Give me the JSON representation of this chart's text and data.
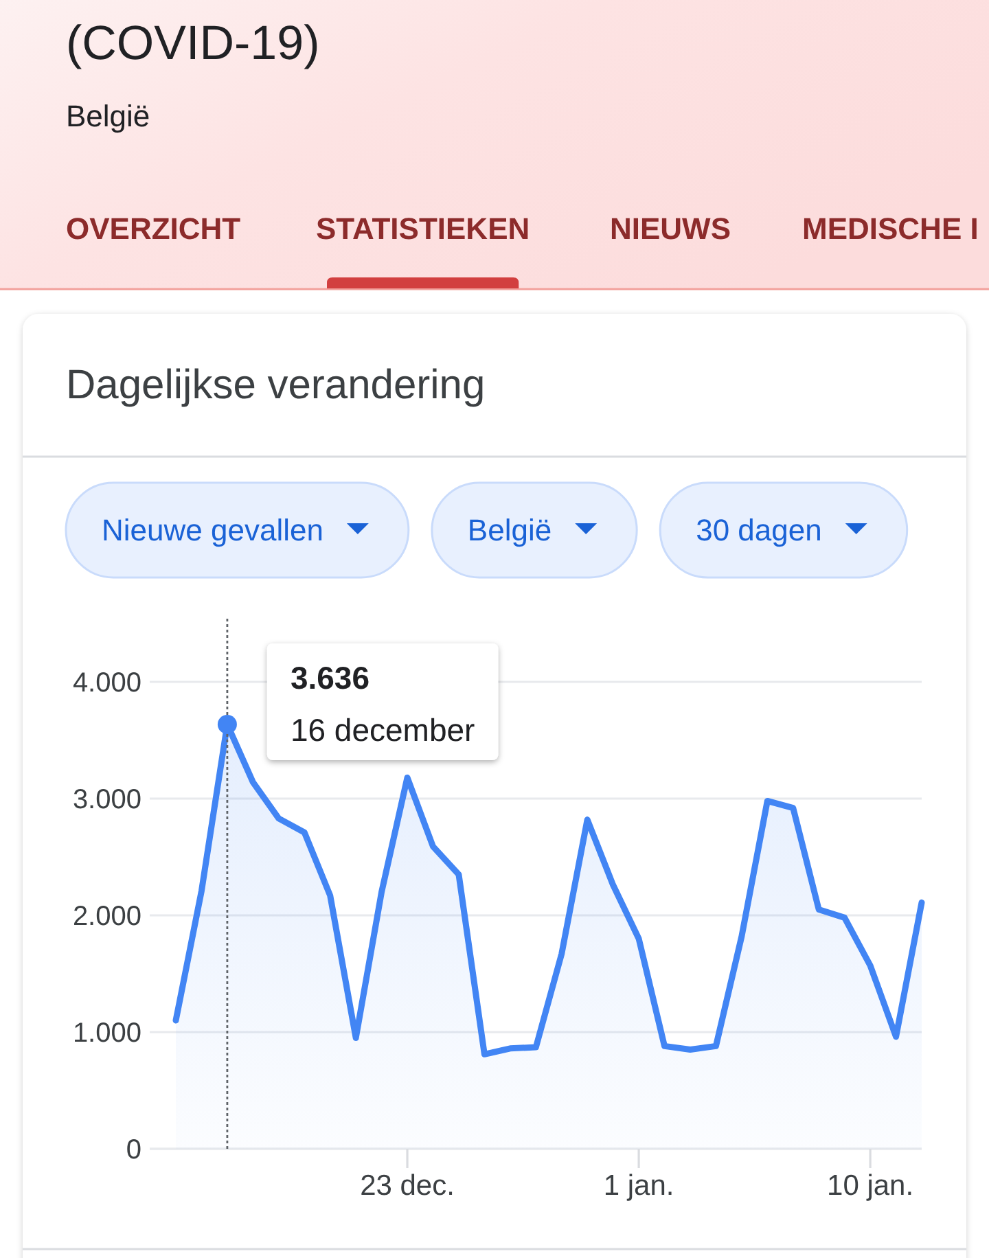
{
  "chart_data": {
    "type": "area",
    "title": "Dagelijkse verandering",
    "annotations": [
      "(COVID-19)",
      "België",
      "OVERZICHT",
      "STATISTIEKEN",
      "NIEUWS",
      "MEDISCHE I",
      "Nieuwe gevallen",
      "België",
      "30 dagen",
      "16 december"
    ],
    "categories": [
      null,
      null,
      null,
      null,
      null,
      null,
      null,
      null,
      null,
      "23 dec.",
      null,
      null,
      null,
      null,
      null,
      null,
      null,
      null,
      "1 jan.",
      null,
      null,
      null,
      null,
      null,
      null,
      null,
      null,
      "10 jan.",
      null,
      null
    ],
    "series": [
      {
        "color": "#4285f4",
        "values": [
          1100,
          2210,
          3636,
          3140,
          2830,
          2710,
          2170,
          950,
          2200,
          3180,
          2590,
          2350,
          810,
          860,
          870,
          1670,
          2820,
          2260,
          1800,
          880,
          850,
          880,
          1820,
          2980,
          2920,
          2050,
          1980,
          1570,
          960,
          2110
        ],
        "value_labels": [
          null,
          null,
          "3.636",
          null,
          null,
          null,
          null,
          null,
          null,
          null,
          null,
          null,
          null,
          null,
          null,
          null,
          null,
          null,
          null,
          null,
          null,
          null,
          null,
          null,
          null,
          null,
          null,
          null,
          null,
          null
        ]
      }
    ],
    "ylim": [
      0,
      4000
    ],
    "yticks": [
      0,
      {
        "value": 1000,
        "label": "1.000"
      },
      {
        "value": 2000,
        "label": "2.000"
      },
      {
        "value": 3000,
        "label": "3.000"
      },
      {
        "value": 4000,
        "label": "4.000"
      }
    ],
    "grid": "y"
  }
}
